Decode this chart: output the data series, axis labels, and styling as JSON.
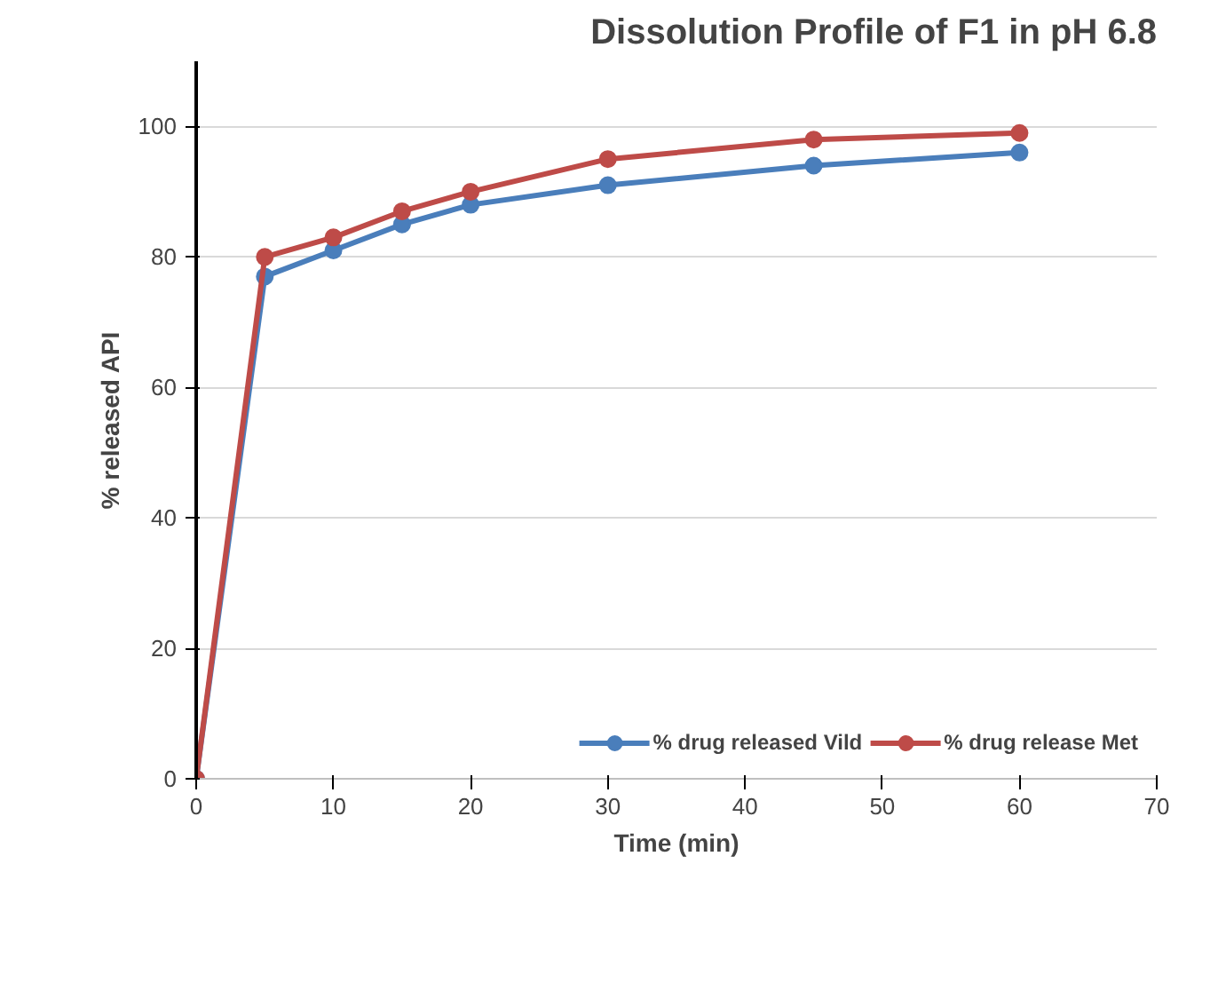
{
  "chart_data": {
    "type": "line",
    "title": "Dissolution Profile of F1 in pH 6.8",
    "xlabel": "Time (min)",
    "ylabel": "% released API",
    "x": [
      0,
      5,
      10,
      15,
      20,
      30,
      45,
      60
    ],
    "series": [
      {
        "name": "% drug released Vild",
        "color": "#4a7ebb",
        "values": [
          0,
          77,
          81,
          85,
          88,
          91,
          94,
          96
        ]
      },
      {
        "name": "% drug release Met",
        "color": "#be4b48",
        "values": [
          0,
          80,
          83,
          87,
          90,
          95,
          98,
          99
        ]
      }
    ],
    "xlim": [
      0,
      70
    ],
    "xticks": [
      0,
      10,
      20,
      30,
      40,
      50,
      60,
      70
    ],
    "ylim": [
      0,
      110
    ],
    "yticks": [
      0,
      20,
      40,
      60,
      80,
      100
    ],
    "grid": "y",
    "legend": "bottom right",
    "marker": "circle",
    "line_style": "solid"
  }
}
